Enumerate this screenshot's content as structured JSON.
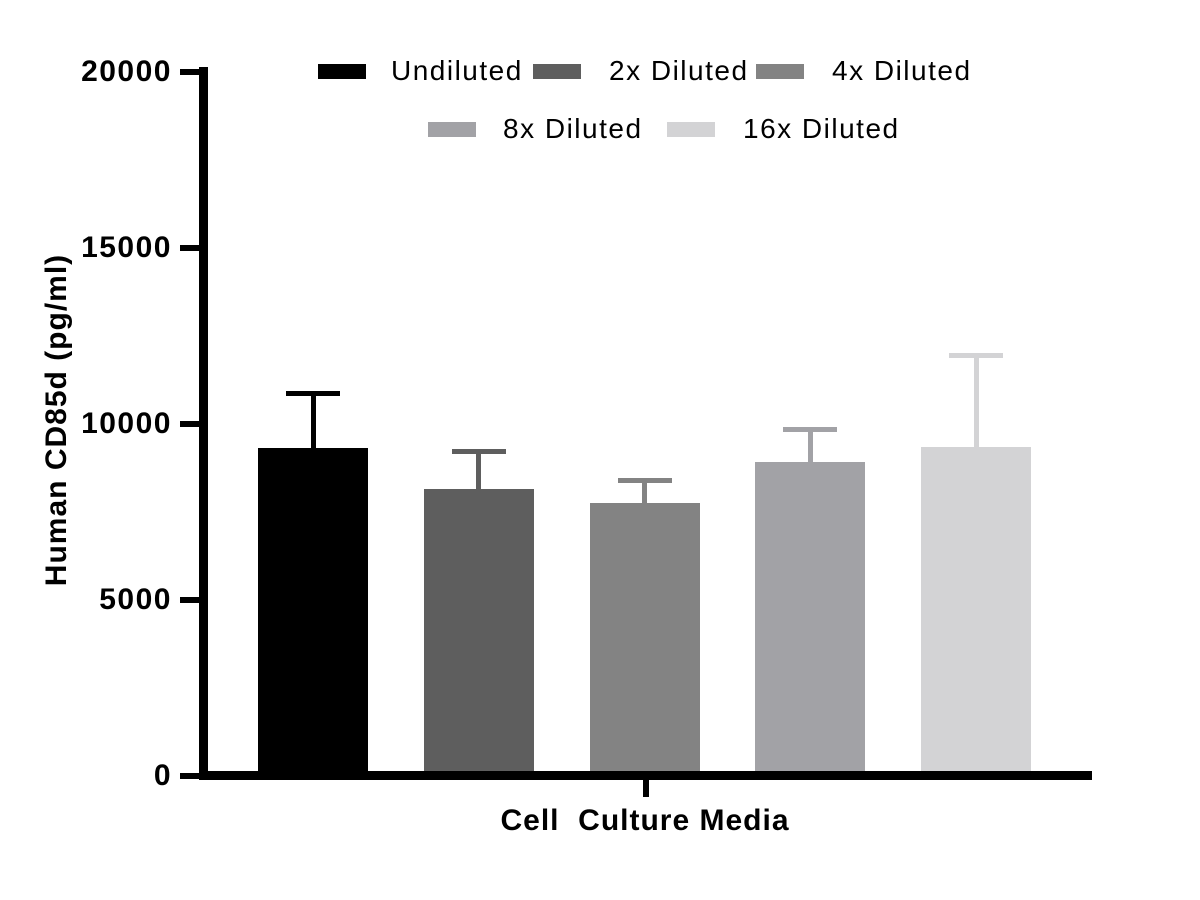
{
  "chart_data": {
    "type": "bar",
    "title": "",
    "xlabel": "Cell  Culture Media",
    "ylabel": "Human CD85d (pg/ml)",
    "categories": [
      "Cell Culture Media"
    ],
    "series": [
      {
        "name": "Undiluted",
        "value": 9300,
        "error_upper": 10850,
        "color": "#000000"
      },
      {
        "name": "2x Diluted",
        "value": 8150,
        "error_upper": 9200,
        "color": "#5e5e5e"
      },
      {
        "name": "4x Diluted",
        "value": 7750,
        "error_upper": 8400,
        "color": "#838383"
      },
      {
        "name": "8x Diluted",
        "value": 8900,
        "error_upper": 9850,
        "color": "#a2a2a6"
      },
      {
        "name": "16x Diluted",
        "value": 9350,
        "error_upper": 11950,
        "color": "#d3d3d5"
      }
    ],
    "yticks": [
      0,
      5000,
      10000,
      15000,
      20000
    ],
    "ylim": [
      0,
      20000
    ],
    "error_bars": "upper",
    "legend_position": "top",
    "legend_rows": [
      [
        "Undiluted",
        "2x Diluted",
        "4x Diluted"
      ],
      [
        "8x Diluted",
        "16x Diluted"
      ]
    ],
    "grid": false,
    "background_color": "#ffffff",
    "axis_color": "#000000"
  }
}
